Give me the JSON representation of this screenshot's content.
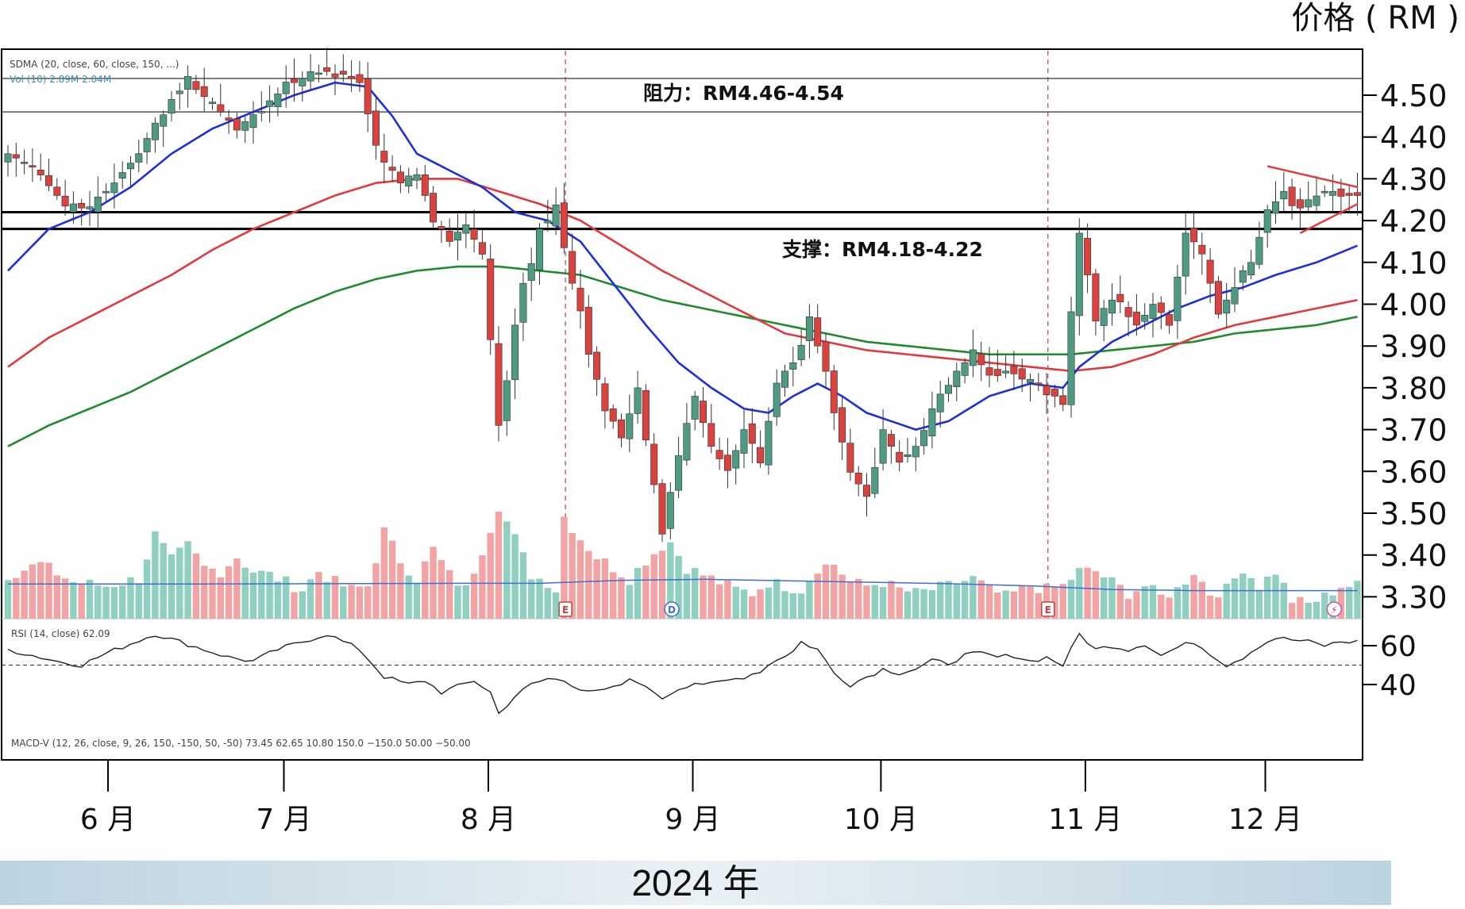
{
  "chart_data": {
    "type": "candlestick",
    "ylabel": "价格 ( RM )",
    "y_ticks": [
      "4.50",
      "4.40",
      "4.30",
      "4.20",
      "4.10",
      "4.00",
      "3.90",
      "3.80",
      "3.70",
      "3.60",
      "3.50",
      "3.40",
      "3.30"
    ],
    "ylim": [
      3.28,
      4.6
    ],
    "month_labels": [
      "6 月",
      "7 月",
      "8 月",
      "9 月",
      "10 月",
      "11 月",
      "12 月"
    ],
    "month_positions": [
      3.5,
      25,
      50,
      75,
      98,
      123,
      145
    ],
    "bar_count": 166,
    "x_title": "2024 年",
    "annotations": {
      "resistance": "阻力：RM4.46-4.54",
      "support": "支撑：RM4.18-4.22"
    },
    "resistance_levels": [
      4.54,
      4.46
    ],
    "support_levels": [
      4.22,
      4.18
    ],
    "sma_legend": "SDMA (20, close, 60, close, 150, ...)",
    "vol_legend": "Vol (10)  2.89M  2.04M",
    "rsi_legend": "RSI (14, close)  62.09",
    "rsi_ticks": [
      "60",
      "40"
    ],
    "rsi_reference": 50,
    "macd_legend": "MACD-V (12, 26, close, 9, 26, 150, -150, 50, -50)  73.45  62.65  10.80  150.0  −150.0  50.00  −50.00",
    "event_markers": [
      {
        "bar": 67,
        "label": "E"
      },
      {
        "bar": 80,
        "label": "D"
      },
      {
        "bar": 126,
        "label": "E"
      },
      {
        "bar": 161,
        "label": "⚡"
      }
    ],
    "anchors": {
      "close": [
        [
          0,
          4.36
        ],
        [
          3,
          4.33
        ],
        [
          6,
          4.26
        ],
        [
          9,
          4.23
        ],
        [
          12,
          4.27
        ],
        [
          16,
          4.36
        ],
        [
          19,
          4.47
        ],
        [
          22,
          4.53
        ],
        [
          25,
          4.48
        ],
        [
          28,
          4.42
        ],
        [
          31,
          4.47
        ],
        [
          34,
          4.52
        ],
        [
          37,
          4.55
        ],
        [
          40,
          4.56
        ],
        [
          43,
          4.53
        ],
        [
          45,
          4.38
        ],
        [
          48,
          4.29
        ],
        [
          50,
          4.31
        ],
        [
          52,
          4.21
        ],
        [
          54,
          4.15
        ],
        [
          56,
          4.19
        ],
        [
          58,
          4.12
        ],
        [
          60,
          3.71
        ],
        [
          62,
          3.95
        ],
        [
          63,
          4.05
        ],
        [
          65,
          4.18
        ],
        [
          67,
          4.22
        ],
        [
          69,
          4.05
        ],
        [
          71,
          3.88
        ],
        [
          73,
          3.76
        ],
        [
          75,
          3.68
        ],
        [
          77,
          3.8
        ],
        [
          79,
          3.55
        ],
        [
          80,
          3.45
        ],
        [
          82,
          3.65
        ],
        [
          84,
          3.78
        ],
        [
          86,
          3.66
        ],
        [
          88,
          3.6
        ],
        [
          90,
          3.7
        ],
        [
          92,
          3.62
        ],
        [
          94,
          3.82
        ],
        [
          96,
          3.86
        ],
        [
          98,
          3.97
        ],
        [
          99,
          3.9
        ],
        [
          101,
          3.74
        ],
        [
          103,
          3.6
        ],
        [
          105,
          3.54
        ],
        [
          107,
          3.7
        ],
        [
          109,
          3.62
        ],
        [
          111,
          3.66
        ],
        [
          113,
          3.75
        ],
        [
          115,
          3.82
        ],
        [
          118,
          3.88
        ],
        [
          120,
          3.83
        ],
        [
          122,
          3.84
        ],
        [
          125,
          3.82
        ],
        [
          127,
          3.8
        ],
        [
          129,
          3.76
        ],
        [
          131,
          4.17
        ],
        [
          133,
          3.97
        ],
        [
          135,
          4.01
        ],
        [
          138,
          3.95
        ],
        [
          140,
          4.0
        ],
        [
          142,
          3.96
        ],
        [
          144,
          4.17
        ],
        [
          146,
          4.12
        ],
        [
          148,
          3.98
        ],
        [
          150,
          4.04
        ],
        [
          152,
          4.1
        ],
        [
          154,
          4.22
        ],
        [
          156,
          4.27
        ],
        [
          158,
          4.23
        ],
        [
          160,
          4.27
        ],
        [
          162,
          4.27
        ],
        [
          163,
          4.26
        ],
        [
          165,
          4.26
        ]
      ],
      "sma20": [
        [
          0,
          4.08
        ],
        [
          5,
          4.18
        ],
        [
          10,
          4.22
        ],
        [
          15,
          4.28
        ],
        [
          20,
          4.36
        ],
        [
          25,
          4.42
        ],
        [
          30,
          4.46
        ],
        [
          35,
          4.5
        ],
        [
          40,
          4.53
        ],
        [
          44,
          4.52
        ],
        [
          47,
          4.45
        ],
        [
          50,
          4.36
        ],
        [
          55,
          4.31
        ],
        [
          58,
          4.28
        ],
        [
          62,
          4.22
        ],
        [
          66,
          4.2
        ],
        [
          70,
          4.15
        ],
        [
          74,
          4.05
        ],
        [
          78,
          3.95
        ],
        [
          82,
          3.86
        ],
        [
          86,
          3.8
        ],
        [
          90,
          3.75
        ],
        [
          93,
          3.74
        ],
        [
          96,
          3.78
        ],
        [
          99,
          3.81
        ],
        [
          102,
          3.78
        ],
        [
          105,
          3.74
        ],
        [
          108,
          3.72
        ],
        [
          111,
          3.7
        ],
        [
          115,
          3.72
        ],
        [
          120,
          3.78
        ],
        [
          125,
          3.81
        ],
        [
          129,
          3.8
        ],
        [
          131,
          3.85
        ],
        [
          135,
          3.91
        ],
        [
          139,
          3.95
        ],
        [
          143,
          3.99
        ],
        [
          147,
          4.02
        ],
        [
          151,
          4.04
        ],
        [
          155,
          4.07
        ],
        [
          160,
          4.1
        ],
        [
          165,
          4.14
        ]
      ],
      "sma60": [
        [
          0,
          3.85
        ],
        [
          5,
          3.92
        ],
        [
          10,
          3.97
        ],
        [
          15,
          4.02
        ],
        [
          20,
          4.07
        ],
        [
          25,
          4.13
        ],
        [
          30,
          4.18
        ],
        [
          35,
          4.22
        ],
        [
          40,
          4.26
        ],
        [
          45,
          4.29
        ],
        [
          50,
          4.3
        ],
        [
          55,
          4.3
        ],
        [
          60,
          4.27
        ],
        [
          65,
          4.24
        ],
        [
          70,
          4.2
        ],
        [
          75,
          4.14
        ],
        [
          80,
          4.08
        ],
        [
          85,
          4.03
        ],
        [
          90,
          3.98
        ],
        [
          95,
          3.93
        ],
        [
          100,
          3.91
        ],
        [
          105,
          3.89
        ],
        [
          110,
          3.88
        ],
        [
          115,
          3.87
        ],
        [
          120,
          3.86
        ],
        [
          125,
          3.85
        ],
        [
          130,
          3.84
        ],
        [
          135,
          3.85
        ],
        [
          140,
          3.88
        ],
        [
          145,
          3.92
        ],
        [
          150,
          3.95
        ],
        [
          155,
          3.97
        ],
        [
          160,
          3.99
        ],
        [
          165,
          4.01
        ]
      ],
      "sma150": [
        [
          0,
          3.66
        ],
        [
          5,
          3.71
        ],
        [
          10,
          3.75
        ],
        [
          15,
          3.79
        ],
        [
          20,
          3.84
        ],
        [
          25,
          3.89
        ],
        [
          30,
          3.94
        ],
        [
          35,
          3.99
        ],
        [
          40,
          4.03
        ],
        [
          45,
          4.06
        ],
        [
          50,
          4.08
        ],
        [
          55,
          4.09
        ],
        [
          60,
          4.09
        ],
        [
          65,
          4.08
        ],
        [
          70,
          4.07
        ],
        [
          75,
          4.04
        ],
        [
          80,
          4.01
        ],
        [
          85,
          3.99
        ],
        [
          90,
          3.97
        ],
        [
          95,
          3.95
        ],
        [
          100,
          3.93
        ],
        [
          105,
          3.91
        ],
        [
          110,
          3.9
        ],
        [
          115,
          3.89
        ],
        [
          120,
          3.88
        ],
        [
          125,
          3.88
        ],
        [
          130,
          3.88
        ],
        [
          135,
          3.89
        ],
        [
          140,
          3.9
        ],
        [
          145,
          3.91
        ],
        [
          150,
          3.93
        ],
        [
          155,
          3.94
        ],
        [
          160,
          3.95
        ],
        [
          165,
          3.97
        ]
      ],
      "rsi": [
        [
          0,
          58
        ],
        [
          3,
          55
        ],
        [
          6,
          52
        ],
        [
          9,
          50
        ],
        [
          12,
          56
        ],
        [
          15,
          61
        ],
        [
          18,
          66
        ],
        [
          21,
          62
        ],
        [
          24,
          58
        ],
        [
          27,
          54
        ],
        [
          30,
          52
        ],
        [
          33,
          58
        ],
        [
          36,
          62
        ],
        [
          39,
          66
        ],
        [
          41,
          62
        ],
        [
          43,
          58
        ],
        [
          46,
          44
        ],
        [
          49,
          40
        ],
        [
          51,
          42
        ],
        [
          53,
          36
        ],
        [
          55,
          39
        ],
        [
          57,
          42
        ],
        [
          59,
          36
        ],
        [
          60,
          25
        ],
        [
          62,
          34
        ],
        [
          64,
          40
        ],
        [
          66,
          43
        ],
        [
          68,
          42
        ],
        [
          70,
          38
        ],
        [
          72,
          36
        ],
        [
          74,
          38
        ],
        [
          76,
          42
        ],
        [
          78,
          40
        ],
        [
          79,
          35
        ],
        [
          80,
          33
        ],
        [
          82,
          38
        ],
        [
          84,
          41
        ],
        [
          86,
          40
        ],
        [
          88,
          42
        ],
        [
          90,
          44
        ],
        [
          92,
          47
        ],
        [
          94,
          53
        ],
        [
          96,
          57
        ],
        [
          97,
          62
        ],
        [
          99,
          58
        ],
        [
          101,
          46
        ],
        [
          103,
          40
        ],
        [
          105,
          44
        ],
        [
          107,
          48
        ],
        [
          109,
          46
        ],
        [
          111,
          48
        ],
        [
          113,
          52
        ],
        [
          115,
          51
        ],
        [
          117,
          55
        ],
        [
          119,
          56
        ],
        [
          121,
          54
        ],
        [
          123,
          55
        ],
        [
          125,
          52
        ],
        [
          127,
          54
        ],
        [
          129,
          50
        ],
        [
          131,
          66
        ],
        [
          133,
          58
        ],
        [
          135,
          60
        ],
        [
          137,
          58
        ],
        [
          139,
          61
        ],
        [
          141,
          55
        ],
        [
          143,
          59
        ],
        [
          145,
          62
        ],
        [
          147,
          56
        ],
        [
          149,
          50
        ],
        [
          151,
          54
        ],
        [
          153,
          60
        ],
        [
          155,
          64
        ],
        [
          157,
          63
        ],
        [
          159,
          62
        ],
        [
          161,
          60
        ],
        [
          163,
          62
        ]
      ],
      "volume": [
        [
          0,
          1.2
        ],
        [
          4,
          1.5
        ],
        [
          8,
          1.0
        ],
        [
          12,
          0.9
        ],
        [
          16,
          1.1
        ],
        [
          18,
          2.3
        ],
        [
          20,
          1.6
        ],
        [
          22,
          2.0
        ],
        [
          24,
          1.4
        ],
        [
          26,
          1.3
        ],
        [
          28,
          1.7
        ],
        [
          30,
          1.3
        ],
        [
          32,
          1.2
        ],
        [
          34,
          1.0
        ],
        [
          36,
          0.8
        ],
        [
          38,
          1.3
        ],
        [
          40,
          1.0
        ],
        [
          42,
          0.8
        ],
        [
          44,
          0.9
        ],
        [
          46,
          2.4
        ],
        [
          48,
          1.6
        ],
        [
          50,
          1.1
        ],
        [
          52,
          1.9
        ],
        [
          54,
          1.2
        ],
        [
          56,
          0.8
        ],
        [
          58,
          1.9
        ],
        [
          60,
          3.1
        ],
        [
          62,
          2.2
        ],
        [
          64,
          1.2
        ],
        [
          66,
          1.0
        ],
        [
          67,
          0.8
        ],
        [
          68,
          2.8
        ],
        [
          70,
          2.2
        ],
        [
          72,
          1.7
        ],
        [
          74,
          1.4
        ],
        [
          76,
          1.1
        ],
        [
          78,
          1.6
        ],
        [
          80,
          2.0
        ],
        [
          81,
          2.1
        ],
        [
          83,
          1.4
        ],
        [
          85,
          1.2
        ],
        [
          87,
          1.0
        ],
        [
          89,
          0.8
        ],
        [
          91,
          0.7
        ],
        [
          93,
          1.0
        ],
        [
          95,
          0.9
        ],
        [
          97,
          0.8
        ],
        [
          99,
          1.4
        ],
        [
          101,
          1.5
        ],
        [
          103,
          1.0
        ],
        [
          105,
          0.9
        ],
        [
          107,
          1.0
        ],
        [
          109,
          0.8
        ],
        [
          111,
          0.7
        ],
        [
          113,
          0.8
        ],
        [
          115,
          0.9
        ],
        [
          118,
          1.1
        ],
        [
          120,
          0.8
        ],
        [
          122,
          0.6
        ],
        [
          125,
          0.9
        ],
        [
          127,
          0.8
        ],
        [
          129,
          0.9
        ],
        [
          131,
          1.3
        ],
        [
          133,
          1.3
        ],
        [
          135,
          1.0
        ],
        [
          137,
          0.7
        ],
        [
          139,
          0.9
        ],
        [
          141,
          0.6
        ],
        [
          143,
          0.8
        ],
        [
          145,
          1.3
        ],
        [
          147,
          0.7
        ],
        [
          149,
          0.8
        ],
        [
          151,
          1.4
        ],
        [
          153,
          0.9
        ],
        [
          155,
          1.3
        ],
        [
          157,
          0.5
        ],
        [
          159,
          0.4
        ],
        [
          161,
          0.6
        ],
        [
          163,
          0.9
        ]
      ],
      "vol_ma": [
        [
          0,
          0.95
        ],
        [
          20,
          0.95
        ],
        [
          40,
          0.96
        ],
        [
          55,
          0.97
        ],
        [
          65,
          0.97
        ],
        [
          75,
          1.05
        ],
        [
          85,
          1.08
        ],
        [
          100,
          1.02
        ],
        [
          115,
          0.96
        ],
        [
          125,
          0.9
        ],
        [
          135,
          0.8
        ],
        [
          145,
          0.77
        ],
        [
          155,
          0.77
        ],
        [
          165,
          0.77
        ]
      ]
    }
  }
}
